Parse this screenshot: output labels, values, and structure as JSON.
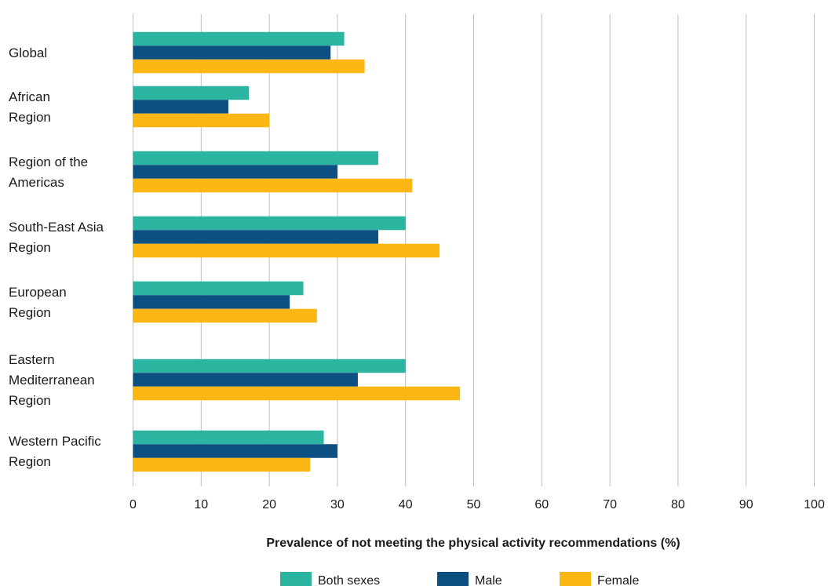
{
  "chart_data": {
    "type": "bar",
    "orientation": "horizontal",
    "categories": [
      [
        "Global"
      ],
      [
        "African",
        "Region"
      ],
      [
        "Region of the",
        "Americas"
      ],
      [
        "South-East Asia",
        "Region"
      ],
      [
        "European",
        "Region"
      ],
      [
        "Eastern",
        "Mediterranean",
        "Region"
      ],
      [
        "Western Pacific",
        "Region"
      ]
    ],
    "series": [
      {
        "name": "Both sexes",
        "color": "#2bb5a0",
        "values": [
          31,
          17,
          36,
          40,
          25,
          40,
          28
        ]
      },
      {
        "name": "Male",
        "color": "#0d4f80",
        "values": [
          29,
          14,
          30,
          36,
          23,
          33,
          30
        ]
      },
      {
        "name": "Female",
        "color": "#fdb714",
        "values": [
          34,
          20,
          41,
          45,
          27,
          48,
          26
        ]
      }
    ],
    "xlabel": "Prevalence of not meeting the physical activity recommendations (%)",
    "xlim": [
      0,
      100
    ],
    "xticks": [
      0,
      10,
      20,
      30,
      40,
      50,
      60,
      70,
      80,
      90,
      100
    ],
    "grid": "vertical",
    "legend_position": "bottom"
  }
}
